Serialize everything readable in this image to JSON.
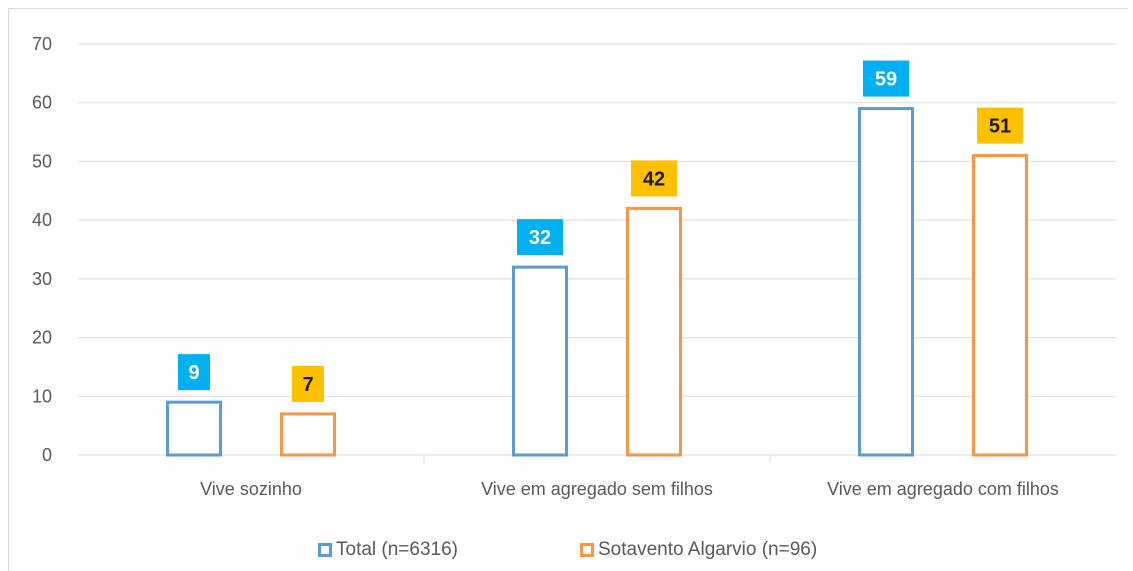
{
  "chart_data": {
    "type": "bar",
    "categories": [
      "Vive sozinho",
      "Vive em agregado sem filhos",
      "Vive em agregado com filhos"
    ],
    "series": [
      {
        "name": "Total (n=6316)",
        "values": [
          9,
          32,
          59
        ],
        "labels": [
          "9",
          "32",
          "59"
        ],
        "color": "#5b9bd5",
        "label_bg": "#00b0f0",
        "label_fg": "#ffffff"
      },
      {
        "name": "Sotavento Algarvio (n=96)",
        "values": [
          7,
          42,
          51
        ],
        "labels": [
          "7",
          "42",
          "51"
        ],
        "color": "#f79646",
        "label_bg": "#ffc000",
        "label_fg": "#1a1a1a"
      }
    ],
    "ylim": [
      0,
      70
    ],
    "yticks": [
      "0",
      "10",
      "20",
      "30",
      "40",
      "50",
      "60",
      "70"
    ],
    "grid": true,
    "legend": "bottom"
  }
}
